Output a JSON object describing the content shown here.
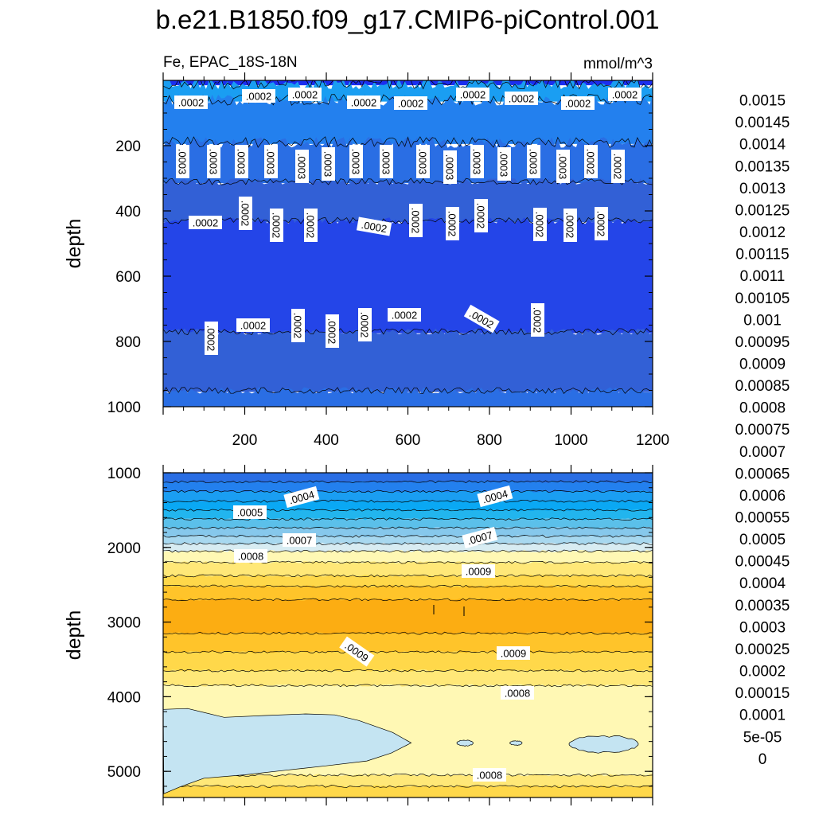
{
  "title": "b.e21.B1850.f09_g17.CMIP6-piControl.001",
  "chart_data": [
    {
      "type": "heatmap",
      "panel": "upper",
      "subtitle_left": "Fe, EPAC_18S-18N",
      "subtitle_right": "mmol/m^3",
      "ylabel": "depth",
      "xlabel": "",
      "xlim": [
        0,
        1200
      ],
      "ylim": [
        1000,
        0
      ],
      "x_ticks": [
        "200",
        "400",
        "600",
        "800",
        "1000",
        "1200"
      ],
      "y_ticks": [
        "200",
        "400",
        "600",
        "800",
        "1000"
      ],
      "bands": [
        {
          "from": 0,
          "to": 10,
          "value": "0.0001-0.00015"
        },
        {
          "from": 10,
          "to": 60,
          "value": "0.00035-0.0004"
        },
        {
          "from": 60,
          "to": 190,
          "value": "0.0003-0.00035"
        },
        {
          "from": 190,
          "to": 310,
          "value": "0.00025-0.0003"
        },
        {
          "from": 310,
          "to": 430,
          "value": "0.0002-0.00025"
        },
        {
          "from": 430,
          "to": 770,
          "value": "0.00015-0.0002"
        },
        {
          "from": 770,
          "to": 950,
          "value": "0.0002-0.00025"
        },
        {
          "from": 950,
          "to": 1000,
          "value": "0.00025-0.0003"
        }
      ],
      "contour_labels": [
        ".0002",
        ".0002",
        ".0002",
        ".0002",
        ".0002",
        ".0002",
        ".0002",
        ".0002",
        ".0002",
        ".0003",
        ".0003",
        ".0003",
        ".0003",
        ".0003",
        ".0003",
        ".0003",
        ".0003",
        ".0003",
        ".0003",
        ".0003",
        ".0003",
        ".0003",
        ".0003",
        ".0002",
        ".0002",
        ".0002",
        ".0002",
        ".0002",
        ".0002",
        ".0002",
        ".0002",
        ".0002",
        ".0002",
        ".0002",
        ".0002",
        ".0002",
        ".0002",
        ".0002",
        ".0002",
        ".0002",
        ".0002",
        ".0002",
        ".0002",
        ".0002"
      ]
    },
    {
      "type": "heatmap",
      "panel": "lower",
      "ylabel": "depth",
      "xlabel": "",
      "xlim": [
        0,
        1200
      ],
      "ylim": [
        5350,
        1000
      ],
      "y_ticks": [
        "1000",
        "2000",
        "3000",
        "4000",
        "5000"
      ],
      "bands": [
        {
          "from": 1000,
          "to": 1120,
          "value": "0.00025-0.0003"
        },
        {
          "from": 1120,
          "to": 1250,
          "value": "0.0003-0.00035"
        },
        {
          "from": 1250,
          "to": 1380,
          "value": "0.00035-0.0004"
        },
        {
          "from": 1380,
          "to": 1500,
          "value": "0.0004-0.00045"
        },
        {
          "from": 1500,
          "to": 1620,
          "value": "0.00045-0.0005"
        },
        {
          "from": 1620,
          "to": 1740,
          "value": "0.0005-0.00055"
        },
        {
          "from": 1740,
          "to": 1850,
          "value": "0.00055-0.0006"
        },
        {
          "from": 1850,
          "to": 1950,
          "value": "0.0006-0.00065"
        },
        {
          "from": 1950,
          "to": 2050,
          "value": "0.0007-0.00075"
        },
        {
          "from": 2050,
          "to": 2200,
          "value": "0.00075-0.0008"
        },
        {
          "from": 2200,
          "to": 2380,
          "value": "0.0008-0.00085"
        },
        {
          "from": 2380,
          "to": 2520,
          "value": "0.00085-0.0009"
        },
        {
          "from": 2520,
          "to": 2700,
          "value": "0.0009-0.00095"
        },
        {
          "from": 2700,
          "to": 3150,
          "value": "0.00095-0.001"
        },
        {
          "from": 3150,
          "to": 3400,
          "value": "0.0009-0.00095"
        },
        {
          "from": 3400,
          "to": 3650,
          "value": "0.00085-0.0009"
        },
        {
          "from": 3650,
          "to": 3850,
          "value": "0.0008-0.00085"
        },
        {
          "from": 3850,
          "to": 5050,
          "value": "0.00075-0.0008"
        },
        {
          "from": 5050,
          "to": 5200,
          "value": "0.0008-0.00085"
        },
        {
          "from": 5200,
          "to": 5350,
          "value": "0.00085-0.0009"
        }
      ],
      "contour_labels": [
        ".0004",
        ".0004",
        ".0005",
        ".0007",
        ".0007",
        ".0008",
        ".0009",
        ".0009",
        ".0009",
        ".0008",
        ".0008"
      ]
    }
  ],
  "colorbar": {
    "labels": [
      "0.0015",
      "0.00145",
      "0.0014",
      "0.00135",
      "0.0013",
      "0.00125",
      "0.0012",
      "0.00115",
      "0.0011",
      "0.00105",
      "0.001",
      "0.00095",
      "0.0009",
      "0.00085",
      "0.0008",
      "0.00075",
      "0.0007",
      "0.00065",
      "0.0006",
      "0.00055",
      "0.0005",
      "0.00045",
      "0.0004",
      "0.00035",
      "0.0003",
      "0.00025",
      "0.0002",
      "0.00015",
      "0.0001",
      "5e-05",
      "0"
    ],
    "colors": [
      "#ffb3b3",
      "#e86060",
      "#d82a2a",
      "#cc0000",
      "#e00000",
      "#ff1a00",
      "#ff3300",
      "#ff4c00",
      "#ff6600",
      "#ff7f00",
      "#ff9900",
      "#ffaa00",
      "#ffbf1f",
      "#ffd633",
      "#ffe566",
      "#fff2a0",
      "#fffcc0",
      "#c8e6f5",
      "#a8d6ef",
      "#86c6ec",
      "#5dbfeb",
      "#22b2ee",
      "#00aaf5",
      "#1495f0",
      "#2277ee",
      "#2a63d8",
      "#3255d0",
      "#2244ee",
      "#1122f0",
      "#0000ff",
      "#2a1ae8",
      "#5a1cd8",
      "#8a32e6"
    ]
  }
}
